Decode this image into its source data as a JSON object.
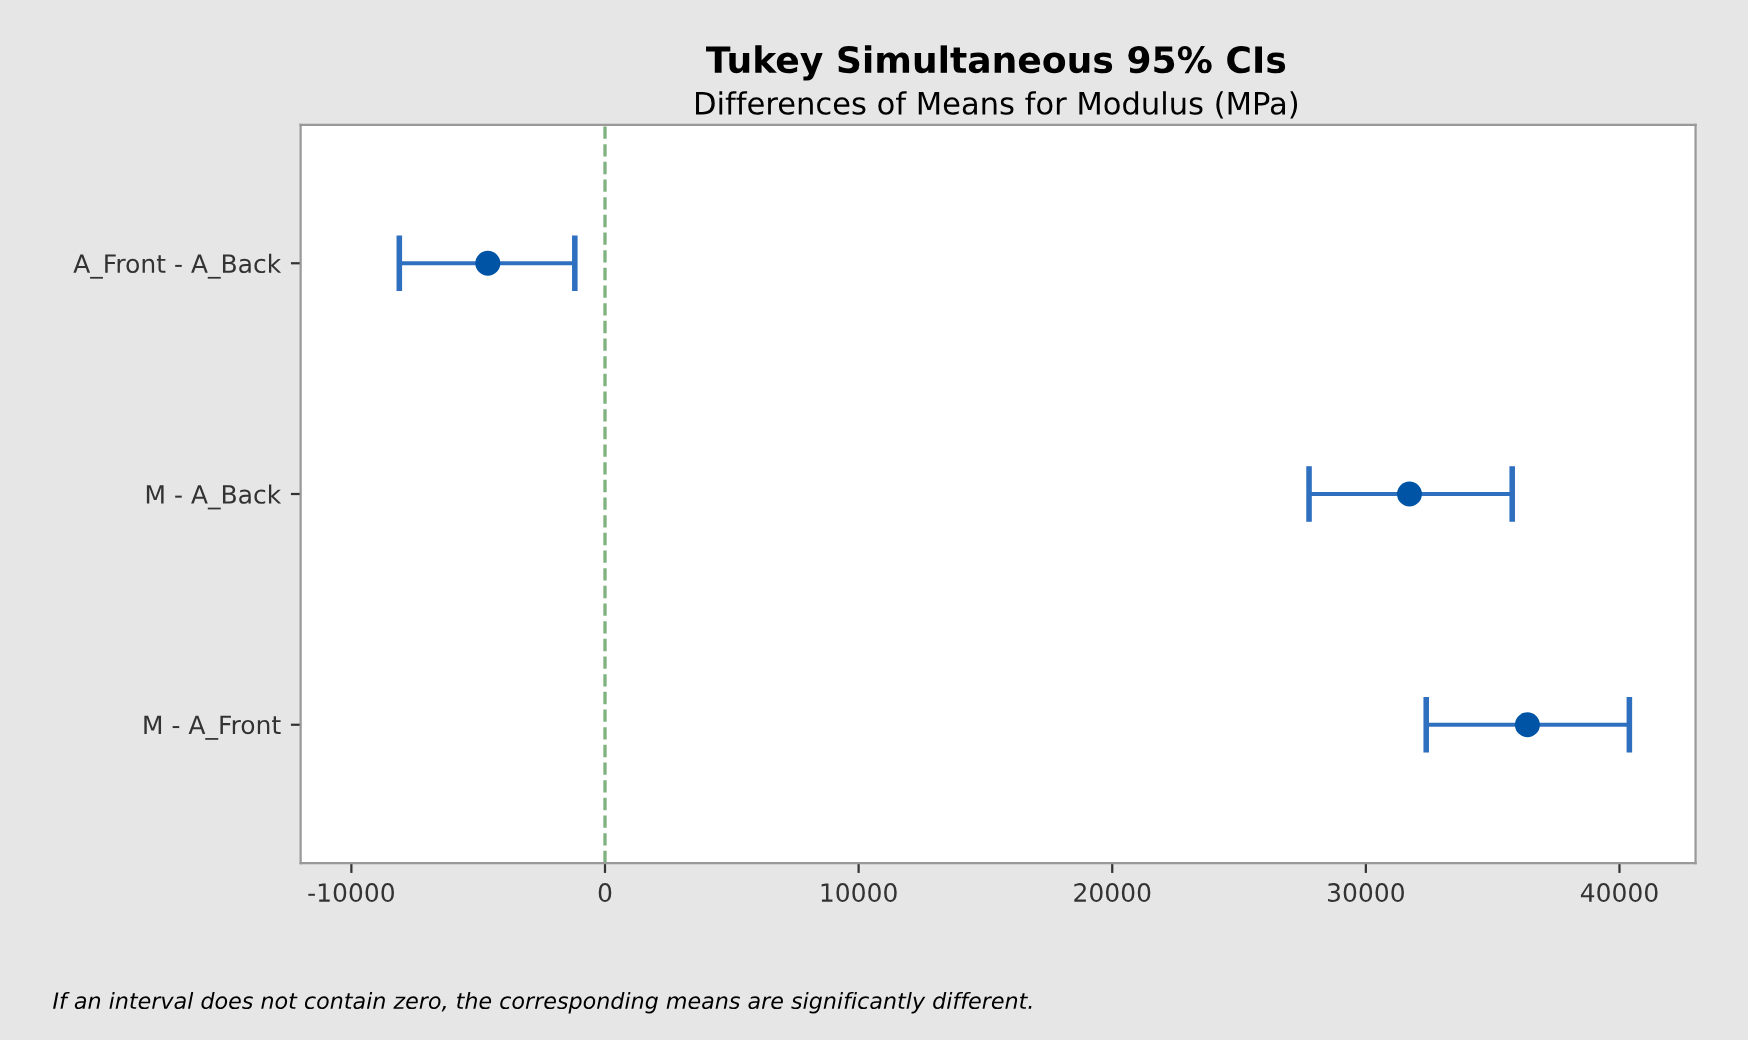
{
  "chart_data": {
    "type": "scatter",
    "title": "Tukey Simultaneous 95% CIs",
    "subtitle": "Differences of Means for Modulus (MPa)",
    "orientation": "horizontal",
    "categories": [
      "A_Front - A_Back",
      "M - A_Back",
      "M - A_Front"
    ],
    "values": [
      -4620,
      31720,
      36370
    ],
    "errors": [
      [
        -8110,
        -1190
      ],
      [
        27760,
        35770
      ],
      [
        32380,
        40390
      ]
    ],
    "color": "#0054a6",
    "marker": "circle",
    "grid": false,
    "legend": false,
    "xlim": [
      -12000,
      43000
    ],
    "xticks": [
      -10000,
      0,
      10000,
      20000,
      30000,
      40000
    ],
    "ref_lines": [
      {
        "axis": "x",
        "value": 0,
        "color": "#7fb27f",
        "line_style": "dashed"
      }
    ],
    "annotations": [
      "If an interval does not contain zero, the corresponding means are significantly different."
    ]
  }
}
